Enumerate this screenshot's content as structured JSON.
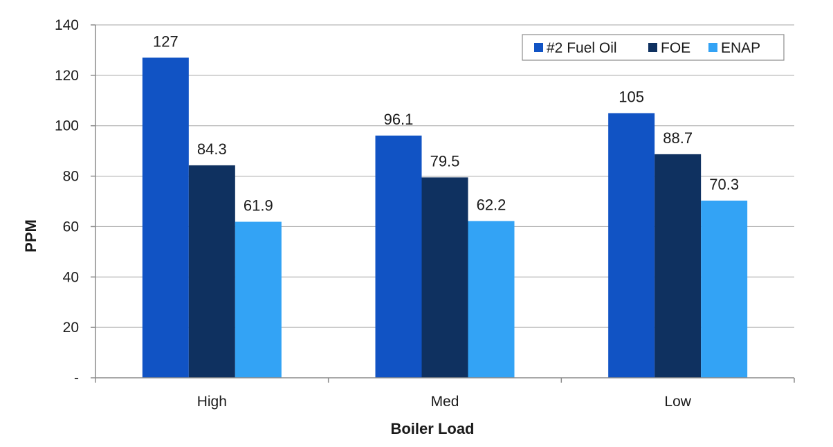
{
  "chart_data": {
    "type": "bar",
    "categories": [
      "High",
      "Med",
      "Low"
    ],
    "series": [
      {
        "name": "#2 Fuel Oil",
        "values": [
          127,
          96.1,
          105
        ],
        "color": "#1153c4"
      },
      {
        "name": "FOE",
        "values": [
          84.3,
          79.5,
          88.7
        ],
        "color": "#0f3160"
      },
      {
        "name": "ENAP",
        "values": [
          61.9,
          62.2,
          70.3
        ],
        "color": "#33a3f5"
      }
    ],
    "data_labels": [
      [
        "127",
        "84.3",
        "61.9"
      ],
      [
        "96.1",
        "79.5",
        "62.2"
      ],
      [
        "105",
        "88.7",
        "70.3"
      ]
    ],
    "xlabel": "Boiler Load",
    "ylabel": "PPM",
    "ylim": [
      0,
      140
    ],
    "yticks": [
      0,
      20,
      40,
      60,
      80,
      100,
      120,
      140
    ],
    "ytick_labels": [
      "-",
      "20",
      "40",
      "60",
      "80",
      "100",
      "120",
      "140"
    ],
    "grid": true,
    "legend_position": "top-right"
  }
}
